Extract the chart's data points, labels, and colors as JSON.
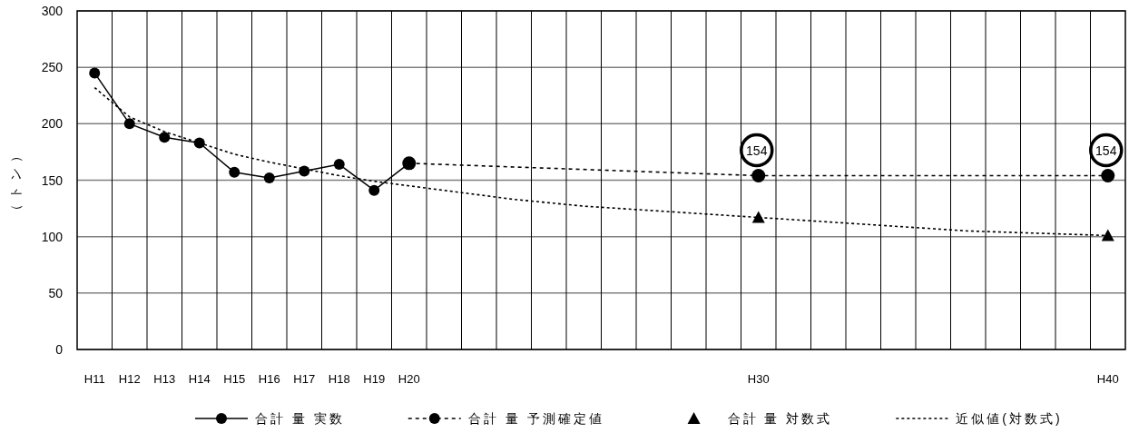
{
  "chart_data": {
    "type": "line",
    "ylabel": "（トン）",
    "categories": [
      "H11",
      "H12",
      "H13",
      "H14",
      "H15",
      "H16",
      "H17",
      "H18",
      "H19",
      "H20",
      null,
      null,
      null,
      null,
      null,
      null,
      null,
      null,
      null,
      "H30",
      null,
      null,
      null,
      null,
      null,
      null,
      null,
      null,
      null,
      "H40"
    ],
    "series": [
      {
        "name": "合計 量 実数",
        "color": "#000000",
        "line_style": "solid",
        "marker": "circle",
        "values": [
          245,
          200,
          188,
          183,
          157,
          152,
          158,
          164,
          141,
          165,
          null,
          null,
          null,
          null,
          null,
          null,
          null,
          null,
          null,
          null,
          null,
          null,
          null,
          null,
          null,
          null,
          null,
          null,
          null,
          null
        ]
      },
      {
        "name": "合計 量 予測確定値",
        "color": "#000000",
        "line_style": "dashed",
        "marker": "circle",
        "values": [
          null,
          null,
          null,
          null,
          null,
          null,
          null,
          null,
          null,
          165,
          null,
          null,
          null,
          null,
          null,
          null,
          null,
          null,
          null,
          154,
          null,
          null,
          null,
          null,
          null,
          null,
          null,
          null,
          null,
          154
        ]
      },
      {
        "name": "合計 量 対数式",
        "type": "scatter",
        "color": "#000000",
        "marker": "triangle",
        "values": [
          null,
          null,
          null,
          null,
          null,
          null,
          null,
          null,
          null,
          null,
          null,
          null,
          null,
          null,
          null,
          null,
          null,
          null,
          null,
          117,
          null,
          null,
          null,
          null,
          null,
          null,
          null,
          null,
          null,
          101
        ]
      },
      {
        "name": "近似値(対数式)",
        "color": "#000000",
        "line_style": "dotted",
        "marker": "none",
        "values": [
          232,
          206,
          193,
          183,
          173,
          166,
          160,
          154,
          149,
          145,
          141,
          137,
          133,
          130,
          127,
          125,
          123,
          121,
          119,
          117,
          115,
          113,
          111,
          109,
          107,
          105,
          104,
          103,
          102,
          101
        ]
      }
    ],
    "annotations": [
      {
        "text": "154",
        "x": "H30",
        "y": 154
      },
      {
        "text": "154",
        "x": "H40",
        "y": 154
      }
    ],
    "ylim": [
      0,
      300
    ],
    "yticks": [
      0,
      50,
      100,
      150,
      200,
      250,
      300
    ],
    "grid": true,
    "legend": "bottom"
  }
}
